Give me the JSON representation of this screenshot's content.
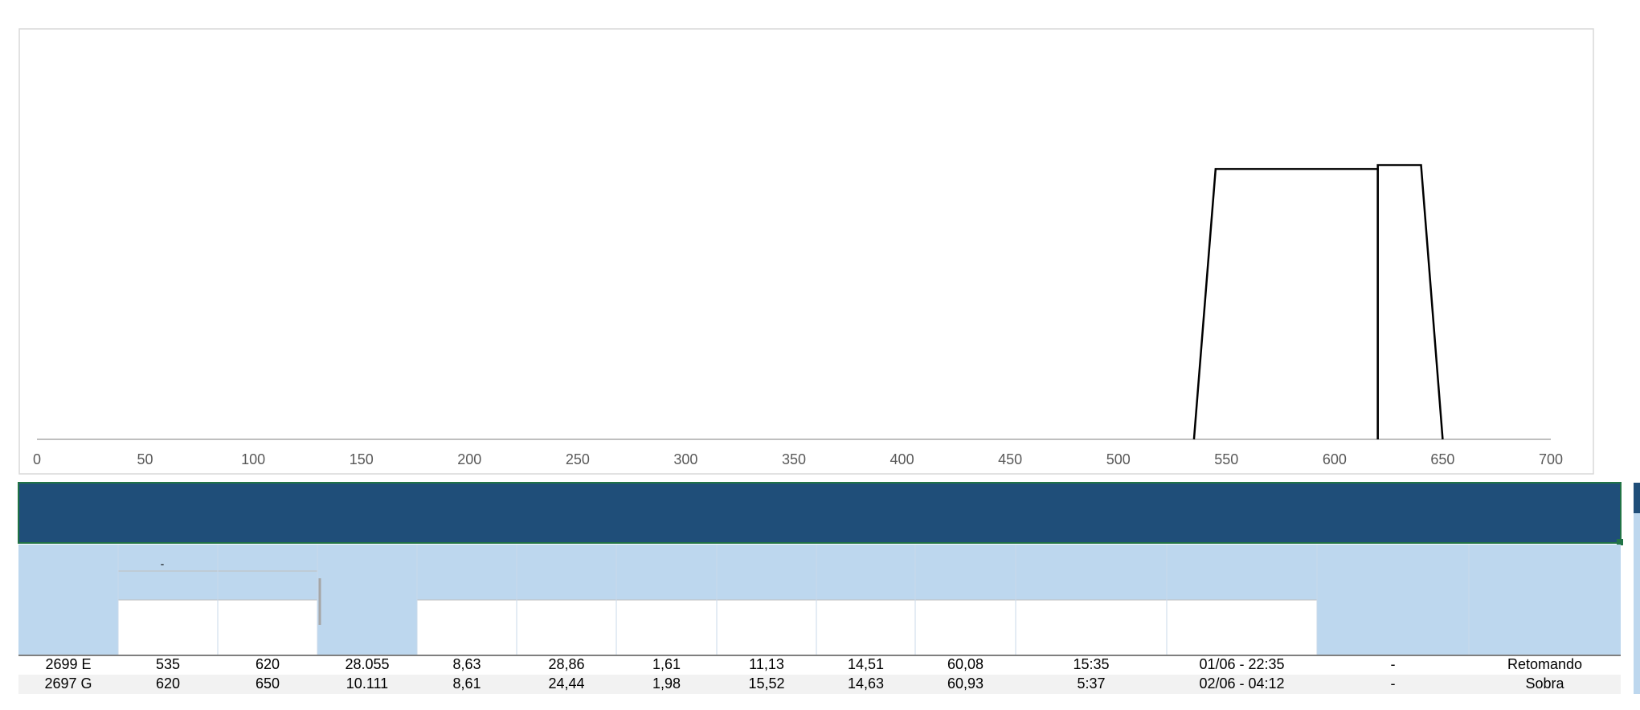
{
  "chart_data": {
    "type": "line",
    "series": [
      {
        "color": "#000000",
        "x": [
          535,
          545,
          620,
          620
        ],
        "values": [
          0,
          68,
          68,
          0
        ]
      },
      {
        "color": "#000000",
        "x": [
          620,
          620,
          640,
          650
        ],
        "values": [
          0,
          69,
          69,
          0
        ]
      }
    ],
    "xlim": [
      0,
      700
    ],
    "xticks": [
      0,
      50,
      100,
      150,
      200,
      250,
      300,
      350,
      400,
      450,
      500,
      550,
      600,
      650,
      700
    ],
    "ylim": [
      0,
      100
    ]
  },
  "table": {
    "subheader": "-",
    "rows": [
      [
        "2699 E",
        "535",
        "620",
        "28.055",
        "8,63",
        "28,86",
        "1,61",
        "11,13",
        "14,51",
        "60,08",
        "15:35",
        "01/06 - 22:35",
        "-",
        "Retomando"
      ],
      [
        "2697 G",
        "620",
        "650",
        "10.111",
        "8,61",
        "24,44",
        "1,98",
        "15,52",
        "14,63",
        "60,93",
        "5:37",
        "02/06 - 04:12",
        "-",
        "Sobra"
      ]
    ]
  }
}
